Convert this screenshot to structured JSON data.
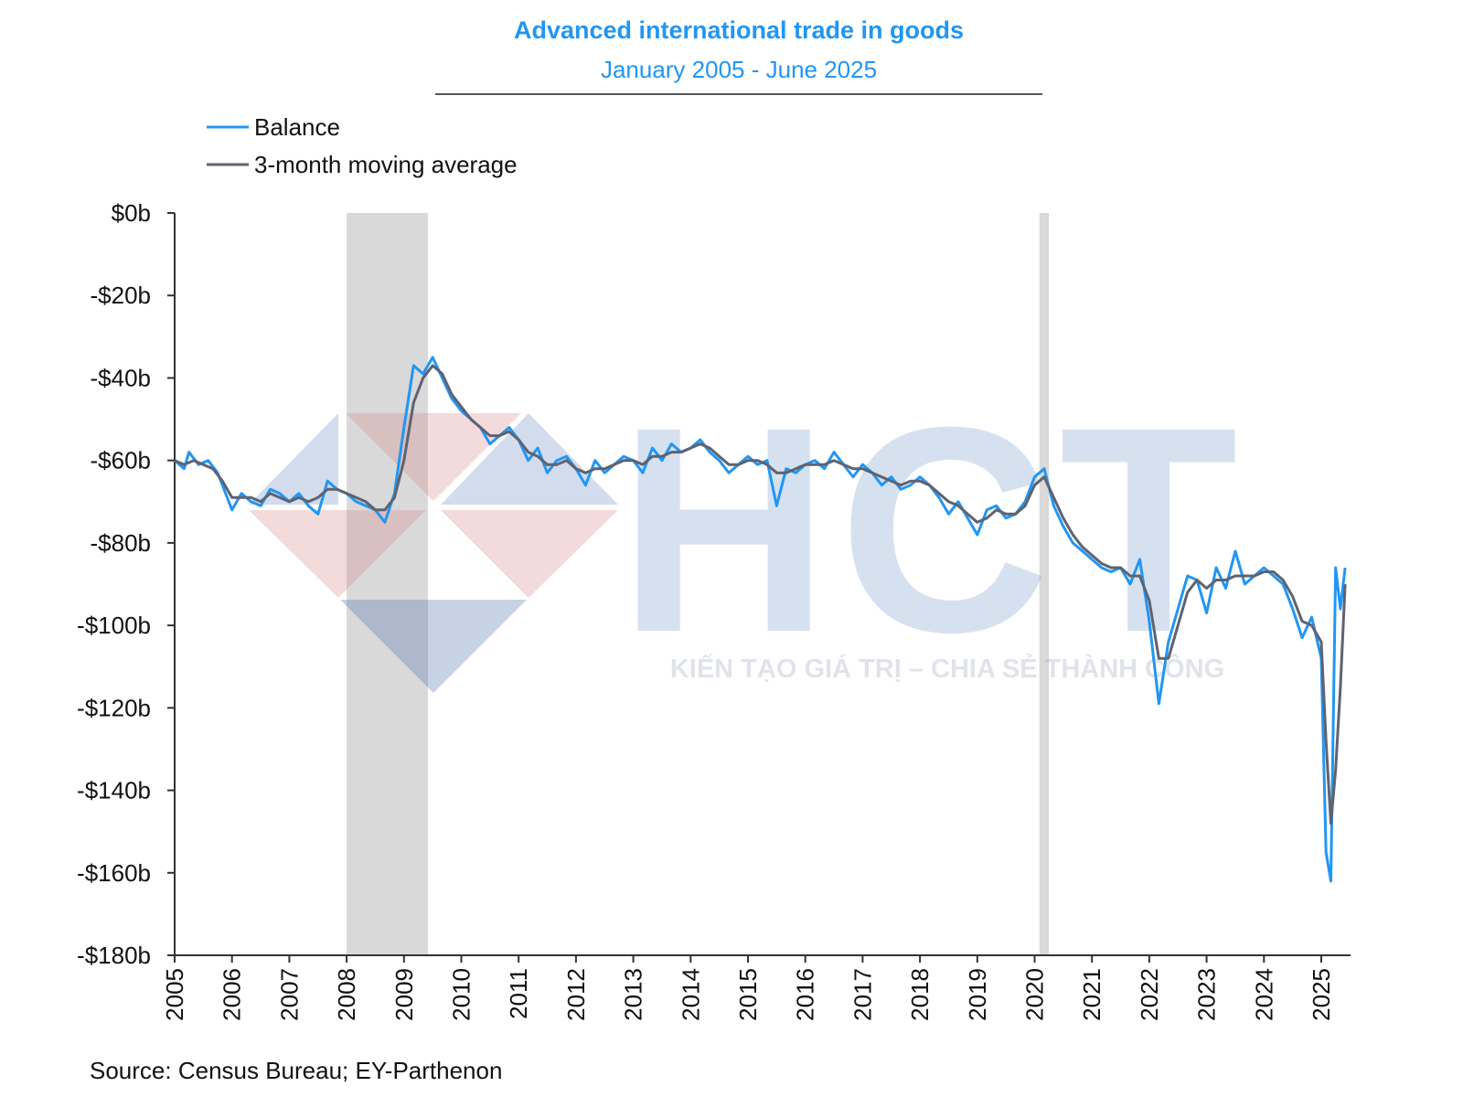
{
  "chart_data": {
    "type": "line",
    "title": "Advanced international trade in goods",
    "subtitle": "January 2005 - June 2025",
    "source": "Source: Census Bureau; EY-Parthenon",
    "legend_position": "top-left",
    "x_tick_labels": [
      "2005",
      "2006",
      "2007",
      "2008",
      "2009",
      "2010",
      "2011",
      "2012",
      "2013",
      "2014",
      "2015",
      "2016",
      "2017",
      "2018",
      "2019",
      "2020",
      "2021",
      "2022",
      "2023",
      "2024",
      "2025"
    ],
    "y_tick_labels": [
      "$0b",
      "-$20b",
      "-$40b",
      "-$60b",
      "-$80b",
      "-$100b",
      "-$120b",
      "-$140b",
      "-$160b",
      "-$180b"
    ],
    "ylim": [
      -180,
      0
    ],
    "xlim": [
      "2005-01",
      "2025-06"
    ],
    "grid": false,
    "recession_shading": [
      {
        "start": "2008-01",
        "end": "2009-06"
      },
      {
        "start": "2020-02",
        "end": "2020-04"
      }
    ],
    "colors": {
      "balance": "#2196F3",
      "moving_average": "#5f6270",
      "title": "#2196F3",
      "shading": "#d9d9d9"
    },
    "series": [
      {
        "name": "Balance",
        "points": [
          [
            "2005-01",
            -60
          ],
          [
            "2005-03",
            -62
          ],
          [
            "2005-04",
            -58
          ],
          [
            "2005-06",
            -61
          ],
          [
            "2005-08",
            -60
          ],
          [
            "2005-10",
            -63
          ],
          [
            "2005-12",
            -69
          ],
          [
            "2006-01",
            -72
          ],
          [
            "2006-03",
            -68
          ],
          [
            "2006-05",
            -70
          ],
          [
            "2006-07",
            -71
          ],
          [
            "2006-09",
            -67
          ],
          [
            "2006-11",
            -68
          ],
          [
            "2007-01",
            -70
          ],
          [
            "2007-03",
            -68
          ],
          [
            "2007-05",
            -71
          ],
          [
            "2007-07",
            -73
          ],
          [
            "2007-09",
            -65
          ],
          [
            "2007-11",
            -67
          ],
          [
            "2008-01",
            -68
          ],
          [
            "2008-03",
            -70
          ],
          [
            "2008-05",
            -71
          ],
          [
            "2008-07",
            -72
          ],
          [
            "2008-09",
            -75
          ],
          [
            "2008-11",
            -68
          ],
          [
            "2009-01",
            -52
          ],
          [
            "2009-03",
            -37
          ],
          [
            "2009-05",
            -39
          ],
          [
            "2009-07",
            -35
          ],
          [
            "2009-09",
            -40
          ],
          [
            "2009-11",
            -45
          ],
          [
            "2010-01",
            -48
          ],
          [
            "2010-03",
            -50
          ],
          [
            "2010-05",
            -52
          ],
          [
            "2010-07",
            -56
          ],
          [
            "2010-09",
            -54
          ],
          [
            "2010-11",
            -52
          ],
          [
            "2011-01",
            -55
          ],
          [
            "2011-03",
            -60
          ],
          [
            "2011-05",
            -57
          ],
          [
            "2011-07",
            -63
          ],
          [
            "2011-09",
            -60
          ],
          [
            "2011-11",
            -59
          ],
          [
            "2012-01",
            -62
          ],
          [
            "2012-03",
            -66
          ],
          [
            "2012-05",
            -60
          ],
          [
            "2012-07",
            -63
          ],
          [
            "2012-09",
            -61
          ],
          [
            "2012-11",
            -59
          ],
          [
            "2013-01",
            -60
          ],
          [
            "2013-03",
            -63
          ],
          [
            "2013-05",
            -57
          ],
          [
            "2013-07",
            -60
          ],
          [
            "2013-09",
            -56
          ],
          [
            "2013-11",
            -58
          ],
          [
            "2014-01",
            -57
          ],
          [
            "2014-03",
            -55
          ],
          [
            "2014-05",
            -58
          ],
          [
            "2014-07",
            -60
          ],
          [
            "2014-09",
            -63
          ],
          [
            "2014-11",
            -61
          ],
          [
            "2015-01",
            -59
          ],
          [
            "2015-03",
            -61
          ],
          [
            "2015-05",
            -60
          ],
          [
            "2015-07",
            -71
          ],
          [
            "2015-09",
            -62
          ],
          [
            "2015-11",
            -63
          ],
          [
            "2016-01",
            -61
          ],
          [
            "2016-03",
            -60
          ],
          [
            "2016-05",
            -62
          ],
          [
            "2016-07",
            -58
          ],
          [
            "2016-09",
            -61
          ],
          [
            "2016-11",
            -64
          ],
          [
            "2017-01",
            -61
          ],
          [
            "2017-03",
            -63
          ],
          [
            "2017-05",
            -66
          ],
          [
            "2017-07",
            -64
          ],
          [
            "2017-09",
            -67
          ],
          [
            "2017-11",
            -66
          ],
          [
            "2018-01",
            -64
          ],
          [
            "2018-03",
            -66
          ],
          [
            "2018-05",
            -69
          ],
          [
            "2018-07",
            -73
          ],
          [
            "2018-09",
            -70
          ],
          [
            "2018-11",
            -74
          ],
          [
            "2019-01",
            -78
          ],
          [
            "2019-03",
            -72
          ],
          [
            "2019-05",
            -71
          ],
          [
            "2019-07",
            -74
          ],
          [
            "2019-09",
            -73
          ],
          [
            "2019-11",
            -70
          ],
          [
            "2020-01",
            -64
          ],
          [
            "2020-03",
            -62
          ],
          [
            "2020-05",
            -71
          ],
          [
            "2020-07",
            -76
          ],
          [
            "2020-09",
            -80
          ],
          [
            "2020-11",
            -82
          ],
          [
            "2021-01",
            -84
          ],
          [
            "2021-03",
            -86
          ],
          [
            "2021-05",
            -87
          ],
          [
            "2021-07",
            -86
          ],
          [
            "2021-09",
            -90
          ],
          [
            "2021-11",
            -84
          ],
          [
            "2022-01",
            -99
          ],
          [
            "2022-03",
            -119
          ],
          [
            "2022-05",
            -104
          ],
          [
            "2022-07",
            -96
          ],
          [
            "2022-09",
            -88
          ],
          [
            "2022-11",
            -89
          ],
          [
            "2023-01",
            -97
          ],
          [
            "2023-03",
            -86
          ],
          [
            "2023-05",
            -91
          ],
          [
            "2023-07",
            -82
          ],
          [
            "2023-09",
            -90
          ],
          [
            "2023-11",
            -88
          ],
          [
            "2024-01",
            -86
          ],
          [
            "2024-03",
            -88
          ],
          [
            "2024-05",
            -90
          ],
          [
            "2024-07",
            -96
          ],
          [
            "2024-09",
            -103
          ],
          [
            "2024-11",
            -98
          ],
          [
            "2025-01",
            -108
          ],
          [
            "2025-02",
            -155
          ],
          [
            "2025-03",
            -162
          ],
          [
            "2025-04",
            -86
          ],
          [
            "2025-05",
            -96
          ],
          [
            "2025-06",
            -86
          ]
        ]
      },
      {
        "name": "3-month moving average",
        "points": [
          [
            "2005-01",
            -60
          ],
          [
            "2005-03",
            -61
          ],
          [
            "2005-05",
            -60
          ],
          [
            "2005-07",
            -61
          ],
          [
            "2005-09",
            -62
          ],
          [
            "2005-11",
            -65
          ],
          [
            "2006-01",
            -69
          ],
          [
            "2006-03",
            -69
          ],
          [
            "2006-05",
            -69
          ],
          [
            "2006-07",
            -70
          ],
          [
            "2006-09",
            -68
          ],
          [
            "2006-11",
            -69
          ],
          [
            "2007-01",
            -70
          ],
          [
            "2007-03",
            -69
          ],
          [
            "2007-05",
            -70
          ],
          [
            "2007-07",
            -69
          ],
          [
            "2007-09",
            -67
          ],
          [
            "2007-11",
            -67
          ],
          [
            "2008-01",
            -68
          ],
          [
            "2008-03",
            -69
          ],
          [
            "2008-05",
            -70
          ],
          [
            "2008-07",
            -72
          ],
          [
            "2008-09",
            -72
          ],
          [
            "2008-11",
            -69
          ],
          [
            "2009-01",
            -60
          ],
          [
            "2009-03",
            -46
          ],
          [
            "2009-05",
            -40
          ],
          [
            "2009-07",
            -37
          ],
          [
            "2009-09",
            -39
          ],
          [
            "2009-11",
            -44
          ],
          [
            "2010-01",
            -47
          ],
          [
            "2010-03",
            -50
          ],
          [
            "2010-05",
            -52
          ],
          [
            "2010-07",
            -54
          ],
          [
            "2010-09",
            -54
          ],
          [
            "2010-11",
            -53
          ],
          [
            "2011-01",
            -55
          ],
          [
            "2011-03",
            -58
          ],
          [
            "2011-05",
            -59
          ],
          [
            "2011-07",
            -61
          ],
          [
            "2011-09",
            -61
          ],
          [
            "2011-11",
            -60
          ],
          [
            "2012-01",
            -62
          ],
          [
            "2012-03",
            -63
          ],
          [
            "2012-05",
            -62
          ],
          [
            "2012-07",
            -62
          ],
          [
            "2012-09",
            -61
          ],
          [
            "2012-11",
            -60
          ],
          [
            "2013-01",
            -60
          ],
          [
            "2013-03",
            -61
          ],
          [
            "2013-05",
            -59
          ],
          [
            "2013-07",
            -59
          ],
          [
            "2013-09",
            -58
          ],
          [
            "2013-11",
            -58
          ],
          [
            "2014-01",
            -57
          ],
          [
            "2014-03",
            -56
          ],
          [
            "2014-05",
            -57
          ],
          [
            "2014-07",
            -59
          ],
          [
            "2014-09",
            -61
          ],
          [
            "2014-11",
            -61
          ],
          [
            "2015-01",
            -60
          ],
          [
            "2015-03",
            -60
          ],
          [
            "2015-05",
            -61
          ],
          [
            "2015-07",
            -63
          ],
          [
            "2015-09",
            -63
          ],
          [
            "2015-11",
            -62
          ],
          [
            "2016-01",
            -61
          ],
          [
            "2016-03",
            -61
          ],
          [
            "2016-05",
            -61
          ],
          [
            "2016-07",
            -60
          ],
          [
            "2016-09",
            -61
          ],
          [
            "2016-11",
            -62
          ],
          [
            "2017-01",
            -62
          ],
          [
            "2017-03",
            -63
          ],
          [
            "2017-05",
            -64
          ],
          [
            "2017-07",
            -65
          ],
          [
            "2017-09",
            -66
          ],
          [
            "2017-11",
            -65
          ],
          [
            "2018-01",
            -65
          ],
          [
            "2018-03",
            -66
          ],
          [
            "2018-05",
            -68
          ],
          [
            "2018-07",
            -70
          ],
          [
            "2018-09",
            -71
          ],
          [
            "2018-11",
            -73
          ],
          [
            "2019-01",
            -75
          ],
          [
            "2019-03",
            -74
          ],
          [
            "2019-05",
            -72
          ],
          [
            "2019-07",
            -73
          ],
          [
            "2019-09",
            -73
          ],
          [
            "2019-11",
            -71
          ],
          [
            "2020-01",
            -66
          ],
          [
            "2020-03",
            -64
          ],
          [
            "2020-05",
            -69
          ],
          [
            "2020-07",
            -74
          ],
          [
            "2020-09",
            -78
          ],
          [
            "2020-11",
            -81
          ],
          [
            "2021-01",
            -83
          ],
          [
            "2021-03",
            -85
          ],
          [
            "2021-05",
            -86
          ],
          [
            "2021-07",
            -86
          ],
          [
            "2021-09",
            -88
          ],
          [
            "2021-11",
            -88
          ],
          [
            "2022-01",
            -94
          ],
          [
            "2022-03",
            -108
          ],
          [
            "2022-05",
            -108
          ],
          [
            "2022-07",
            -100
          ],
          [
            "2022-09",
            -92
          ],
          [
            "2022-11",
            -89
          ],
          [
            "2023-01",
            -91
          ],
          [
            "2023-03",
            -89
          ],
          [
            "2023-05",
            -89
          ],
          [
            "2023-07",
            -88
          ],
          [
            "2023-09",
            -88
          ],
          [
            "2023-11",
            -88
          ],
          [
            "2024-01",
            -87
          ],
          [
            "2024-03",
            -87
          ],
          [
            "2024-05",
            -89
          ],
          [
            "2024-07",
            -93
          ],
          [
            "2024-09",
            -99
          ],
          [
            "2024-11",
            -100
          ],
          [
            "2025-01",
            -104
          ],
          [
            "2025-02",
            -128
          ],
          [
            "2025-03",
            -148
          ],
          [
            "2025-04",
            -135
          ],
          [
            "2025-05",
            -115
          ],
          [
            "2025-06",
            -90
          ]
        ]
      }
    ]
  },
  "watermark": {
    "letters": "HCT",
    "tagline": "KIẾN TẠO GIÁ TRỊ – CHIA SẺ THÀNH CÔNG"
  }
}
